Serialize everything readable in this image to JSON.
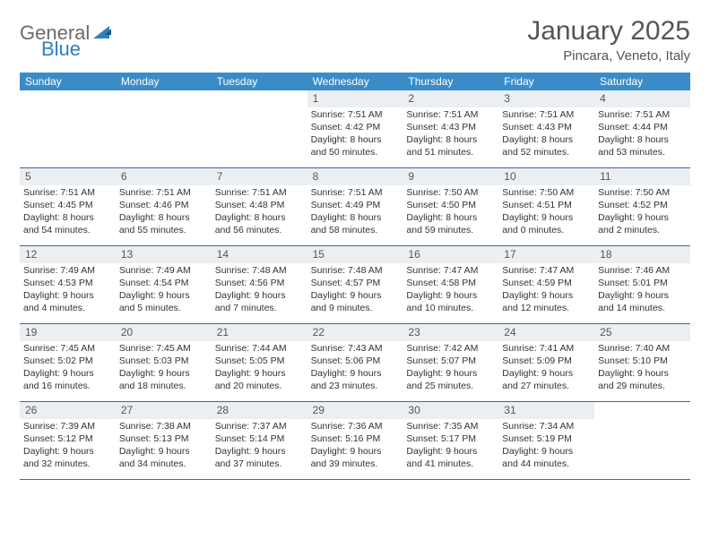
{
  "logo": {
    "text1": "General",
    "text2": "Blue"
  },
  "title": "January 2025",
  "location": "Pincara, Veneto, Italy",
  "colors": {
    "headerBar": "#3a8cc9",
    "dayNumBg": "#eceff1",
    "rowBorder": "#3a6a95",
    "logoGray": "#6b6b6b",
    "logoBlue": "#2f7fbf",
    "text": "#333333"
  },
  "daysOfWeek": [
    "Sunday",
    "Monday",
    "Tuesday",
    "Wednesday",
    "Thursday",
    "Friday",
    "Saturday"
  ],
  "weeks": [
    [
      null,
      null,
      null,
      {
        "n": "1",
        "sr": "Sunrise: 7:51 AM",
        "ss": "Sunset: 4:42 PM",
        "d1": "Daylight: 8 hours",
        "d2": "and 50 minutes."
      },
      {
        "n": "2",
        "sr": "Sunrise: 7:51 AM",
        "ss": "Sunset: 4:43 PM",
        "d1": "Daylight: 8 hours",
        "d2": "and 51 minutes."
      },
      {
        "n": "3",
        "sr": "Sunrise: 7:51 AM",
        "ss": "Sunset: 4:43 PM",
        "d1": "Daylight: 8 hours",
        "d2": "and 52 minutes."
      },
      {
        "n": "4",
        "sr": "Sunrise: 7:51 AM",
        "ss": "Sunset: 4:44 PM",
        "d1": "Daylight: 8 hours",
        "d2": "and 53 minutes."
      }
    ],
    [
      {
        "n": "5",
        "sr": "Sunrise: 7:51 AM",
        "ss": "Sunset: 4:45 PM",
        "d1": "Daylight: 8 hours",
        "d2": "and 54 minutes."
      },
      {
        "n": "6",
        "sr": "Sunrise: 7:51 AM",
        "ss": "Sunset: 4:46 PM",
        "d1": "Daylight: 8 hours",
        "d2": "and 55 minutes."
      },
      {
        "n": "7",
        "sr": "Sunrise: 7:51 AM",
        "ss": "Sunset: 4:48 PM",
        "d1": "Daylight: 8 hours",
        "d2": "and 56 minutes."
      },
      {
        "n": "8",
        "sr": "Sunrise: 7:51 AM",
        "ss": "Sunset: 4:49 PM",
        "d1": "Daylight: 8 hours",
        "d2": "and 58 minutes."
      },
      {
        "n": "9",
        "sr": "Sunrise: 7:50 AM",
        "ss": "Sunset: 4:50 PM",
        "d1": "Daylight: 8 hours",
        "d2": "and 59 minutes."
      },
      {
        "n": "10",
        "sr": "Sunrise: 7:50 AM",
        "ss": "Sunset: 4:51 PM",
        "d1": "Daylight: 9 hours",
        "d2": "and 0 minutes."
      },
      {
        "n": "11",
        "sr": "Sunrise: 7:50 AM",
        "ss": "Sunset: 4:52 PM",
        "d1": "Daylight: 9 hours",
        "d2": "and 2 minutes."
      }
    ],
    [
      {
        "n": "12",
        "sr": "Sunrise: 7:49 AM",
        "ss": "Sunset: 4:53 PM",
        "d1": "Daylight: 9 hours",
        "d2": "and 4 minutes."
      },
      {
        "n": "13",
        "sr": "Sunrise: 7:49 AM",
        "ss": "Sunset: 4:54 PM",
        "d1": "Daylight: 9 hours",
        "d2": "and 5 minutes."
      },
      {
        "n": "14",
        "sr": "Sunrise: 7:48 AM",
        "ss": "Sunset: 4:56 PM",
        "d1": "Daylight: 9 hours",
        "d2": "and 7 minutes."
      },
      {
        "n": "15",
        "sr": "Sunrise: 7:48 AM",
        "ss": "Sunset: 4:57 PM",
        "d1": "Daylight: 9 hours",
        "d2": "and 9 minutes."
      },
      {
        "n": "16",
        "sr": "Sunrise: 7:47 AM",
        "ss": "Sunset: 4:58 PM",
        "d1": "Daylight: 9 hours",
        "d2": "and 10 minutes."
      },
      {
        "n": "17",
        "sr": "Sunrise: 7:47 AM",
        "ss": "Sunset: 4:59 PM",
        "d1": "Daylight: 9 hours",
        "d2": "and 12 minutes."
      },
      {
        "n": "18",
        "sr": "Sunrise: 7:46 AM",
        "ss": "Sunset: 5:01 PM",
        "d1": "Daylight: 9 hours",
        "d2": "and 14 minutes."
      }
    ],
    [
      {
        "n": "19",
        "sr": "Sunrise: 7:45 AM",
        "ss": "Sunset: 5:02 PM",
        "d1": "Daylight: 9 hours",
        "d2": "and 16 minutes."
      },
      {
        "n": "20",
        "sr": "Sunrise: 7:45 AM",
        "ss": "Sunset: 5:03 PM",
        "d1": "Daylight: 9 hours",
        "d2": "and 18 minutes."
      },
      {
        "n": "21",
        "sr": "Sunrise: 7:44 AM",
        "ss": "Sunset: 5:05 PM",
        "d1": "Daylight: 9 hours",
        "d2": "and 20 minutes."
      },
      {
        "n": "22",
        "sr": "Sunrise: 7:43 AM",
        "ss": "Sunset: 5:06 PM",
        "d1": "Daylight: 9 hours",
        "d2": "and 23 minutes."
      },
      {
        "n": "23",
        "sr": "Sunrise: 7:42 AM",
        "ss": "Sunset: 5:07 PM",
        "d1": "Daylight: 9 hours",
        "d2": "and 25 minutes."
      },
      {
        "n": "24",
        "sr": "Sunrise: 7:41 AM",
        "ss": "Sunset: 5:09 PM",
        "d1": "Daylight: 9 hours",
        "d2": "and 27 minutes."
      },
      {
        "n": "25",
        "sr": "Sunrise: 7:40 AM",
        "ss": "Sunset: 5:10 PM",
        "d1": "Daylight: 9 hours",
        "d2": "and 29 minutes."
      }
    ],
    [
      {
        "n": "26",
        "sr": "Sunrise: 7:39 AM",
        "ss": "Sunset: 5:12 PM",
        "d1": "Daylight: 9 hours",
        "d2": "and 32 minutes."
      },
      {
        "n": "27",
        "sr": "Sunrise: 7:38 AM",
        "ss": "Sunset: 5:13 PM",
        "d1": "Daylight: 9 hours",
        "d2": "and 34 minutes."
      },
      {
        "n": "28",
        "sr": "Sunrise: 7:37 AM",
        "ss": "Sunset: 5:14 PM",
        "d1": "Daylight: 9 hours",
        "d2": "and 37 minutes."
      },
      {
        "n": "29",
        "sr": "Sunrise: 7:36 AM",
        "ss": "Sunset: 5:16 PM",
        "d1": "Daylight: 9 hours",
        "d2": "and 39 minutes."
      },
      {
        "n": "30",
        "sr": "Sunrise: 7:35 AM",
        "ss": "Sunset: 5:17 PM",
        "d1": "Daylight: 9 hours",
        "d2": "and 41 minutes."
      },
      {
        "n": "31",
        "sr": "Sunrise: 7:34 AM",
        "ss": "Sunset: 5:19 PM",
        "d1": "Daylight: 9 hours",
        "d2": "and 44 minutes."
      },
      null
    ]
  ]
}
